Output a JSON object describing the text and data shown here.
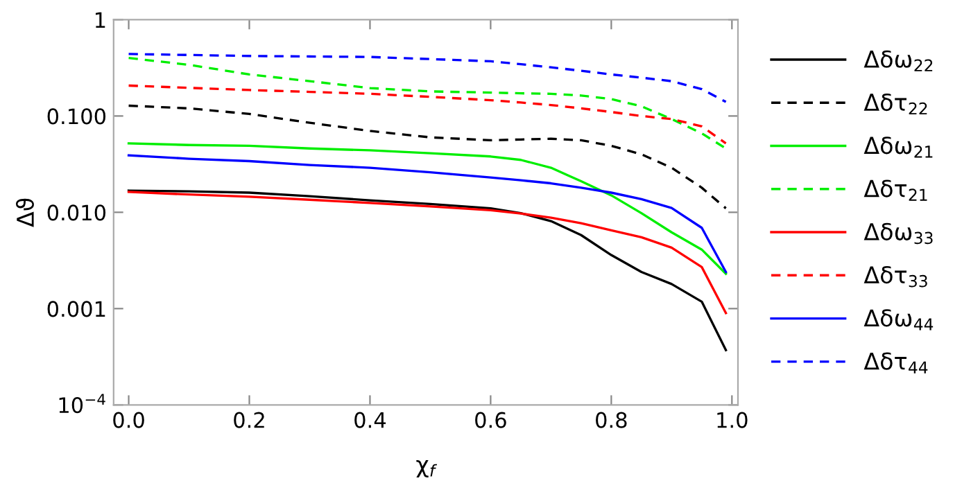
{
  "chart_data": {
    "type": "line",
    "xlabel": "χ$_{f}$",
    "ylabel": "Δϑ",
    "x": [
      0,
      0.1,
      0.2,
      0.3,
      0.4,
      0.5,
      0.6,
      0.65,
      0.7,
      0.75,
      0.8,
      0.85,
      0.9,
      0.95,
      0.99
    ],
    "series": [
      {
        "name": "Δδω$_{22}$",
        "color": "#000000",
        "line_style": "solid",
        "values": [
          0.0168,
          0.0165,
          0.016,
          0.0147,
          0.0133,
          0.0122,
          0.011,
          0.0098,
          0.0081,
          0.0058,
          0.0036,
          0.0024,
          0.0018,
          0.00118,
          0.00037
        ]
      },
      {
        "name": "Δδτ$_{22}$",
        "color": "#000000",
        "line_style": "dashed",
        "values": [
          0.128,
          0.12,
          0.105,
          0.085,
          0.07,
          0.06,
          0.056,
          0.057,
          0.058,
          0.056,
          0.049,
          0.04,
          0.029,
          0.018,
          0.011
        ]
      },
      {
        "name": "Δδω$_{21}$",
        "color": "#00ee00",
        "line_style": "solid",
        "values": [
          0.052,
          0.05,
          0.049,
          0.046,
          0.044,
          0.041,
          0.038,
          0.035,
          0.029,
          0.021,
          0.015,
          0.0098,
          0.0062,
          0.0041,
          0.0023
        ]
      },
      {
        "name": "Δδτ$_{21}$",
        "color": "#00ee00",
        "line_style": "dashed",
        "values": [
          0.4,
          0.34,
          0.27,
          0.23,
          0.195,
          0.18,
          0.175,
          0.172,
          0.17,
          0.163,
          0.15,
          0.126,
          0.093,
          0.066,
          0.046
        ]
      },
      {
        "name": "Δδω$_{33}$",
        "color": "#ff0000",
        "line_style": "solid",
        "values": [
          0.0163,
          0.0153,
          0.0145,
          0.0135,
          0.0125,
          0.0115,
          0.0105,
          0.0097,
          0.0088,
          0.0077,
          0.0065,
          0.0055,
          0.0043,
          0.0027,
          0.0009
        ]
      },
      {
        "name": "Δδτ$_{33}$",
        "color": "#ff0000",
        "line_style": "dashed",
        "values": [
          0.207,
          0.196,
          0.186,
          0.178,
          0.17,
          0.158,
          0.146,
          0.138,
          0.13,
          0.12,
          0.11,
          0.1,
          0.093,
          0.078,
          0.052
        ]
      },
      {
        "name": "Δδω$_{44}$",
        "color": "#0000ff",
        "line_style": "solid",
        "values": [
          0.039,
          0.036,
          0.034,
          0.031,
          0.029,
          0.026,
          0.023,
          0.0215,
          0.02,
          0.018,
          0.016,
          0.0137,
          0.0111,
          0.0069,
          0.0024
        ]
      },
      {
        "name": "Δδτ$_{44}$",
        "color": "#0000ff",
        "line_style": "dashed",
        "values": [
          0.44,
          0.43,
          0.42,
          0.415,
          0.41,
          0.39,
          0.37,
          0.345,
          0.32,
          0.295,
          0.27,
          0.25,
          0.23,
          0.19,
          0.14
        ]
      }
    ],
    "log": "y",
    "xlim": [
      -0.025,
      1.01
    ],
    "ylim": [
      0.0001,
      1
    ],
    "xticks": [
      {
        "value": 0,
        "label": "0.0"
      },
      0.2,
      0.4,
      0.6,
      0.8,
      {
        "value": 1,
        "label": "1.0"
      }
    ],
    "yticks": [
      {
        "value": 0.0001,
        "label": "10$^{−4}$"
      },
      0.001,
      {
        "value": 0.01,
        "label": "0.010"
      },
      {
        "value": 0.1,
        "label": "0.100"
      },
      1
    ],
    "grid": false,
    "legend": "right"
  }
}
